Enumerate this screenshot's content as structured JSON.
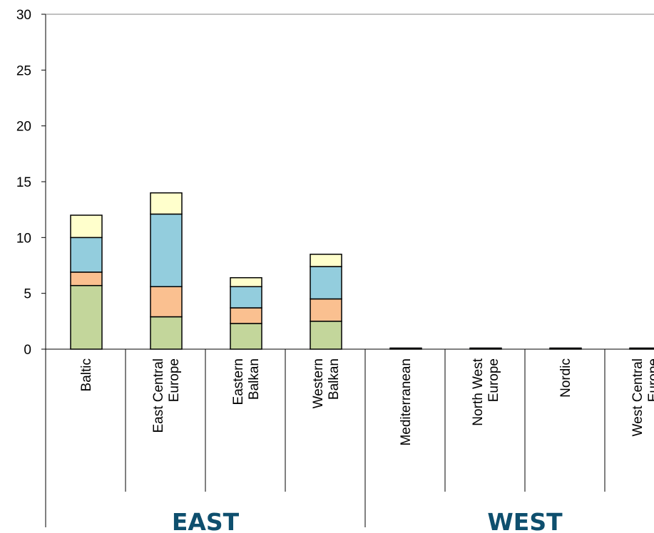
{
  "chart_data": {
    "type": "bar",
    "stacked": true,
    "ylim": [
      0,
      30
    ],
    "yticks": [
      "0",
      "5",
      "10",
      "15",
      "20",
      "25",
      "30"
    ],
    "grid": false,
    "categories": [
      [
        "Baltic"
      ],
      [
        "East Central",
        "Europe"
      ],
      [
        "Eastern",
        "Balkan"
      ],
      [
        "Western",
        "Balkan"
      ],
      [
        "Mediterranean"
      ],
      [
        "North West",
        "Europe"
      ],
      [
        "Nordic"
      ],
      [
        "West Central",
        "Europe"
      ]
    ],
    "groups": [
      {
        "label": "EAST",
        "span": [
          0,
          3
        ]
      },
      {
        "label": "WEST",
        "span": [
          4,
          7
        ]
      }
    ],
    "series": [
      {
        "color": "#c3d69b",
        "values": [
          5.7,
          2.9,
          2.3,
          2.5,
          0.1,
          0.1,
          0.1,
          0.1
        ]
      },
      {
        "color": "#fac090",
        "values": [
          1.2,
          2.7,
          1.4,
          2.0,
          0,
          0,
          0,
          0
        ]
      },
      {
        "color": "#93cddd",
        "values": [
          3.1,
          6.5,
          1.9,
          2.9,
          0,
          0,
          0,
          0
        ]
      },
      {
        "color": "#ffffcc",
        "values": [
          2.0,
          1.9,
          0.8,
          1.1,
          0,
          0,
          0,
          0
        ]
      }
    ],
    "group_label_color": "#0e4f6e"
  }
}
